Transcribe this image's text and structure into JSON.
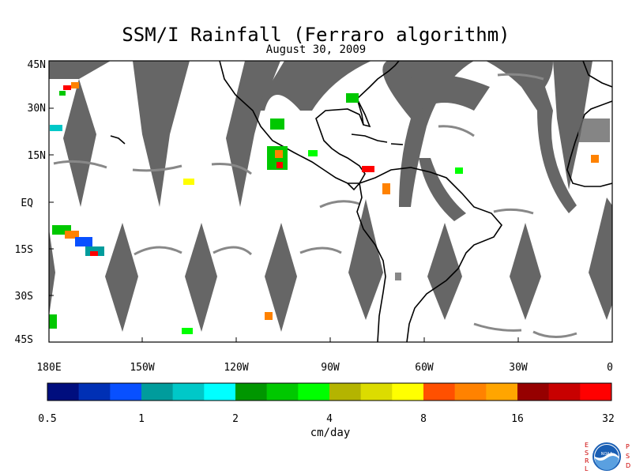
{
  "title": "SSM/I Rainfall (Ferraro algorithm)",
  "subtitle": "August 30, 2009",
  "map": {
    "lat_labels": [
      "45N",
      "30N",
      "15N",
      "EQ",
      "15S",
      "30S",
      "45S"
    ],
    "lon_labels": [
      "180E",
      "150W",
      "120W",
      "90W",
      "60W",
      "30W",
      "0"
    ],
    "swath_color": "#666666",
    "ocean_color": "#ffffff",
    "coast_color": "#000000"
  },
  "colorbar": {
    "colors": [
      "#000e7e",
      "#0030b5",
      "#0850ff",
      "#009c9c",
      "#00c8c8",
      "#00ffff",
      "#009600",
      "#00c800",
      "#00ff00",
      "#b4b400",
      "#dcdc00",
      "#ffff00",
      "#ff5000",
      "#ff8200",
      "#ffa500",
      "#960000",
      "#c80000",
      "#ff0000"
    ],
    "tick_labels": [
      "0.5",
      "1",
      "2",
      "4",
      "8",
      "16",
      "32"
    ],
    "unit": "cm/day"
  },
  "logo": {
    "left_text": "ESRL",
    "right_text": "PSD",
    "center_text": "NOAA"
  }
}
